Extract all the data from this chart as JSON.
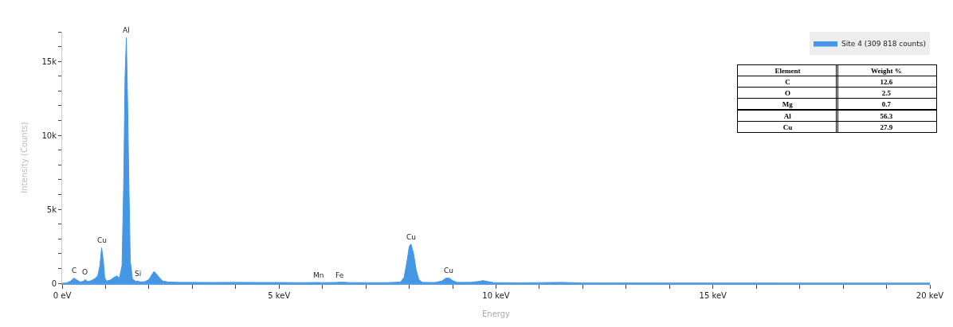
{
  "chart_data": {
    "type": "area",
    "xlabel": "Energy",
    "ylabel": "Intensity (Counts)",
    "x": [
      0,
      0.1,
      0.2,
      0.27,
      0.35,
      0.42,
      0.5,
      0.53,
      0.58,
      0.65,
      0.75,
      0.82,
      0.87,
      0.91,
      0.95,
      0.98,
      1.02,
      1.1,
      1.2,
      1.26,
      1.32,
      1.38,
      1.42,
      1.45,
      1.48,
      1.51,
      1.54,
      1.57,
      1.62,
      1.7,
      1.74,
      1.8,
      1.9,
      2.0,
      2.06,
      2.12,
      2.18,
      2.25,
      2.32,
      2.45,
      2.7,
      3.0,
      3.5,
      4.0,
      4.5,
      5.0,
      5.5,
      5.9,
      6.0,
      6.3,
      6.4,
      6.5,
      6.6,
      7.0,
      7.5,
      7.8,
      7.88,
      7.95,
      8.0,
      8.04,
      8.1,
      8.16,
      8.22,
      8.3,
      8.6,
      8.75,
      8.85,
      8.92,
      9.0,
      9.1,
      9.4,
      9.6,
      9.7,
      9.8,
      9.95,
      10.5,
      11.0,
      11.3,
      11.5,
      11.7,
      12.0,
      14,
      17,
      20
    ],
    "series": [
      {
        "name": "Site 4 (309 818 counts)",
        "color": "#4597e5",
        "values": [
          0,
          20,
          150,
          350,
          200,
          80,
          150,
          250,
          120,
          150,
          300,
          500,
          1200,
          2400,
          1500,
          400,
          150,
          200,
          400,
          500,
          350,
          1200,
          7000,
          14000,
          16600,
          12000,
          6500,
          1500,
          300,
          120,
          150,
          90,
          100,
          250,
          550,
          800,
          600,
          350,
          150,
          80,
          60,
          60,
          50,
          60,
          50,
          50,
          40,
          50,
          40,
          50,
          70,
          70,
          45,
          40,
          40,
          80,
          400,
          1500,
          2500,
          2650,
          2000,
          900,
          250,
          60,
          50,
          150,
          350,
          350,
          180,
          60,
          60,
          120,
          180,
          120,
          40,
          30,
          40,
          50,
          60,
          40,
          20,
          15,
          10,
          10
        ]
      }
    ],
    "xlim": [
      0,
      20
    ],
    "xticks": [
      {
        "value": 0,
        "label": "0 eV"
      },
      {
        "value": 1,
        "label": null
      },
      {
        "value": 2,
        "label": null
      },
      {
        "value": 3,
        "label": null
      },
      {
        "value": 4,
        "label": null
      },
      {
        "value": 5,
        "label": "5 keV"
      },
      {
        "value": 6,
        "label": null
      },
      {
        "value": 7,
        "label": null
      },
      {
        "value": 8,
        "label": null
      },
      {
        "value": 9,
        "label": null
      },
      {
        "value": 10,
        "label": "10 keV"
      },
      {
        "value": 11,
        "label": null
      },
      {
        "value": 12,
        "label": null
      },
      {
        "value": 13,
        "label": null
      },
      {
        "value": 14,
        "label": null
      },
      {
        "value": 15,
        "label": "15 keV"
      },
      {
        "value": 16,
        "label": null
      },
      {
        "value": 17,
        "label": null
      },
      {
        "value": 18,
        "label": null
      },
      {
        "value": 19,
        "label": null
      },
      {
        "value": 20,
        "label": "20 keV"
      }
    ],
    "ylim": [
      0,
      17000
    ],
    "yticks": [
      0,
      {
        "value": 1000,
        "label": null
      },
      {
        "value": 2000,
        "label": null
      },
      {
        "value": 3000,
        "label": null
      },
      {
        "value": 4000,
        "label": null
      },
      {
        "value": 5000,
        "label": "5k"
      },
      {
        "value": 6000,
        "label": null
      },
      {
        "value": 7000,
        "label": null
      },
      {
        "value": 8000,
        "label": null
      },
      {
        "value": 9000,
        "label": null
      },
      {
        "value": 10000,
        "label": "10k"
      },
      {
        "value": 11000,
        "label": null
      },
      {
        "value": 12000,
        "label": null
      },
      {
        "value": 13000,
        "label": null
      },
      {
        "value": 14000,
        "label": null
      },
      {
        "value": 15000,
        "label": "15k"
      },
      {
        "value": 16000,
        "label": null
      },
      {
        "value": 17000,
        "label": null
      }
    ],
    "legend": "top right",
    "annotations": [
      {
        "text": "C",
        "x": 0.27,
        "y": 350
      },
      {
        "text": "O",
        "x": 0.53,
        "y": 250
      },
      {
        "text": "Cu",
        "x": 0.91,
        "y": 2400
      },
      {
        "text": "Al",
        "x": 1.48,
        "y": 16600
      },
      {
        "text": "Si",
        "x": 1.74,
        "y": 150
      },
      {
        "text": "Mn",
        "x": 5.9,
        "y": 55
      },
      {
        "text": "Fe",
        "x": 6.4,
        "y": 70
      },
      {
        "text": "Cu",
        "x": 8.04,
        "y": 2650
      },
      {
        "text": "Cu",
        "x": 8.9,
        "y": 350
      },
      "Element",
      "Weight %",
      "C",
      "12.6",
      "O",
      "2.5",
      "Mg",
      "0.7",
      "Al",
      "56.3",
      "Cu",
      "27.9"
    ]
  }
}
